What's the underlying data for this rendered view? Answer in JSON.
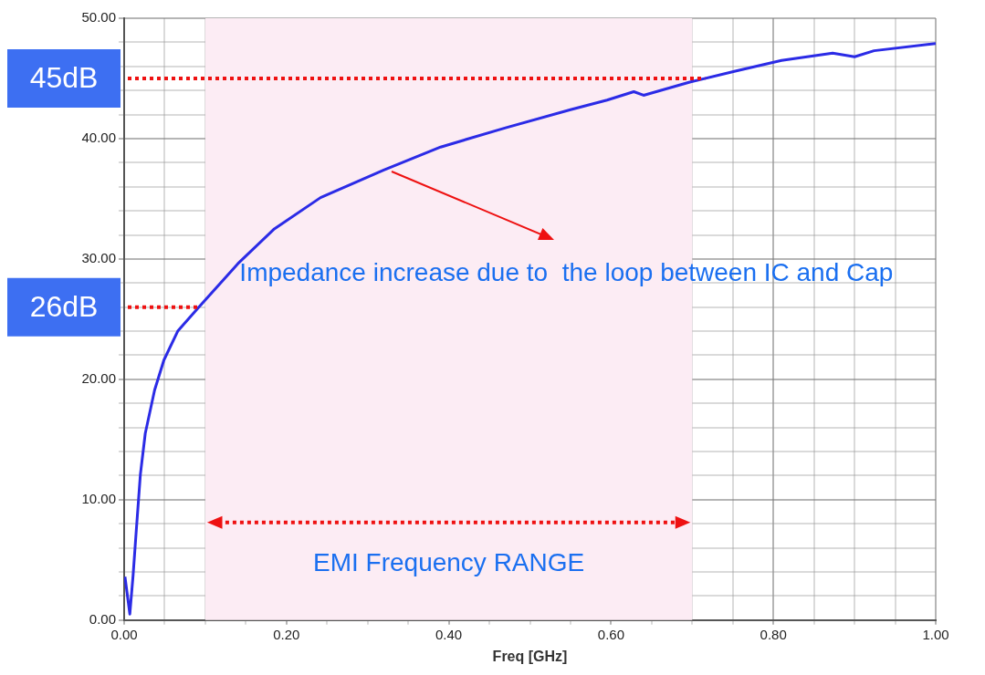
{
  "chart_data": {
    "type": "line",
    "xlabel": "Freq [GHz]",
    "xlim": [
      0,
      1
    ],
    "ylim": [
      0,
      50
    ],
    "xticks": [
      {
        "value": 0,
        "label": "0.00"
      },
      {
        "value": 0.05,
        "label": null
      },
      {
        "value": 0.1,
        "label": null
      },
      {
        "value": 0.15,
        "label": null
      },
      {
        "value": 0.2,
        "label": "0.20"
      },
      {
        "value": 0.25,
        "label": null
      },
      {
        "value": 0.3,
        "label": null
      },
      {
        "value": 0.35,
        "label": null
      },
      {
        "value": 0.4,
        "label": "0.40"
      },
      {
        "value": 0.45,
        "label": null
      },
      {
        "value": 0.5,
        "label": null
      },
      {
        "value": 0.55,
        "label": null
      },
      {
        "value": 0.6,
        "label": "0.60"
      },
      {
        "value": 0.65,
        "label": null
      },
      {
        "value": 0.7,
        "label": null
      },
      {
        "value": 0.75,
        "label": null
      },
      {
        "value": 0.8,
        "label": "0.80"
      },
      {
        "value": 0.85,
        "label": null
      },
      {
        "value": 0.9,
        "label": null
      },
      {
        "value": 0.95,
        "label": null
      },
      {
        "value": 1,
        "label": "1.00"
      }
    ],
    "yticks": [
      {
        "value": 0,
        "label": "0.00"
      },
      {
        "value": 2,
        "label": null
      },
      {
        "value": 4,
        "label": null
      },
      {
        "value": 6,
        "label": null
      },
      {
        "value": 8,
        "label": null
      },
      {
        "value": 10,
        "label": "10.00"
      },
      {
        "value": 12,
        "label": null
      },
      {
        "value": 14,
        "label": null
      },
      {
        "value": 16,
        "label": null
      },
      {
        "value": 18,
        "label": null
      },
      {
        "value": 20,
        "label": "20.00"
      },
      {
        "value": 22,
        "label": null
      },
      {
        "value": 24,
        "label": null
      },
      {
        "value": 26,
        "label": null
      },
      {
        "value": 28,
        "label": null
      },
      {
        "value": 30,
        "label": "30.00"
      },
      {
        "value": 32,
        "label": null
      },
      {
        "value": 34,
        "label": null
      },
      {
        "value": 36,
        "label": null
      },
      {
        "value": 38,
        "label": null
      },
      {
        "value": 40,
        "label": "40.00"
      },
      {
        "value": 42,
        "label": null
      },
      {
        "value": 44,
        "label": null
      },
      {
        "value": 46,
        "label": null
      },
      {
        "value": 48,
        "label": null
      },
      {
        "value": 50,
        "label": "50.00"
      }
    ],
    "grid": true,
    "legend": false,
    "marker": "none",
    "series": [
      {
        "color": "#2b2be6",
        "x": [
          0.001,
          0.007,
          0.011,
          0.015,
          0.02,
          0.026,
          0.0375,
          0.049,
          0.066,
          0.092,
          0.14,
          0.185,
          0.242,
          0.32,
          0.39,
          0.47,
          0.55,
          0.595,
          0.628,
          0.64,
          0.697,
          0.753,
          0.81,
          0.873,
          0.9,
          0.924,
          1.0
        ],
        "values": [
          3.6,
          0.5,
          3.7,
          7.5,
          12.1,
          15.5,
          19.1,
          21.6,
          24.0,
          26.0,
          29.6,
          32.5,
          35.1,
          37.4,
          39.3,
          40.9,
          42.4,
          43.2,
          43.9,
          43.6,
          44.7,
          45.6,
          46.5,
          47.1,
          46.8,
          47.3,
          47.9
        ]
      }
    ],
    "bands": [
      {
        "axis": "x",
        "from": 0.1,
        "to": 0.7,
        "label": "EMI Frequency RANGE",
        "color": "#fcecf4"
      }
    ],
    "ref_lines": [
      {
        "axis": "y",
        "value": 45,
        "label": "45dB",
        "color": "#ee1111",
        "line_style": "dotted"
      },
      {
        "axis": "y",
        "value": 26,
        "label": "26dB",
        "color": "#ee1111",
        "line_style": "dotted"
      }
    ],
    "annotations": [
      {
        "text": "Impedance increase due to  the loop between IC and Cap",
        "x": 0.33,
        "y": 37.3
      }
    ]
  }
}
